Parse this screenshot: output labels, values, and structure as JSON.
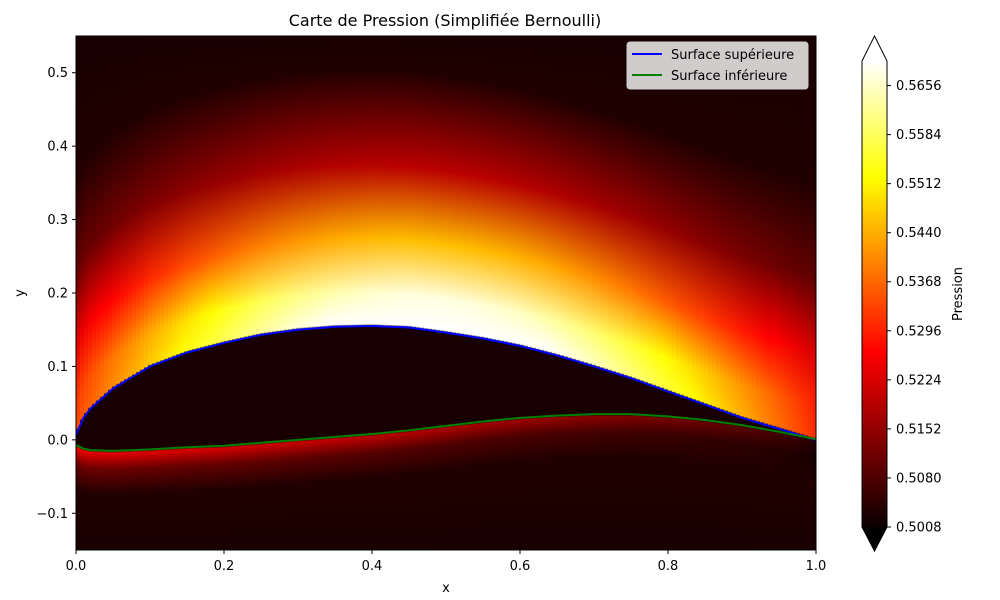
{
  "chart_data": {
    "type": "heatmap",
    "title": "Carte de Pression (Simplifiée Bernoulli)",
    "xlabel": "x",
    "ylabel": "y",
    "xlim": [
      0.0,
      1.0
    ],
    "ylim": [
      -0.15,
      0.55
    ],
    "x_ticks": [
      "0.0",
      "0.2",
      "0.4",
      "0.6",
      "0.8",
      "1.0"
    ],
    "y_ticks": [
      "−0.1",
      "0.0",
      "0.1",
      "0.2",
      "0.3",
      "0.4",
      "0.5"
    ],
    "grid": false,
    "colormap": "hot",
    "colorbar": {
      "label": "Pression",
      "range": [
        0.5008,
        0.5692
      ],
      "ticks": [
        "0.5008",
        "0.5080",
        "0.5152",
        "0.5224",
        "0.5296",
        "0.5368",
        "0.5440",
        "0.5512",
        "0.5584",
        "0.5656"
      ],
      "extend": "both"
    },
    "legend_position": "top-right",
    "series": [
      {
        "name": "Surface supérieure",
        "color": "#0000ff",
        "x": [
          0.0,
          0.01,
          0.02,
          0.05,
          0.1,
          0.15,
          0.2,
          0.25,
          0.3,
          0.35,
          0.4,
          0.45,
          0.5,
          0.55,
          0.6,
          0.65,
          0.7,
          0.75,
          0.8,
          0.85,
          0.9,
          0.95,
          1.0
        ],
        "y": [
          0.007,
          0.03,
          0.043,
          0.07,
          0.1,
          0.119,
          0.132,
          0.143,
          0.15,
          0.154,
          0.155,
          0.153,
          0.146,
          0.138,
          0.128,
          0.115,
          0.1,
          0.084,
          0.066,
          0.048,
          0.03,
          0.015,
          0.0
        ]
      },
      {
        "name": "Surface inférieure",
        "color": "#008000",
        "x": [
          0.0,
          0.01,
          0.02,
          0.05,
          0.1,
          0.15,
          0.2,
          0.25,
          0.3,
          0.35,
          0.4,
          0.45,
          0.5,
          0.55,
          0.6,
          0.65,
          0.7,
          0.75,
          0.8,
          0.85,
          0.9,
          0.95,
          1.0
        ],
        "y": [
          -0.007,
          -0.012,
          -0.014,
          -0.015,
          -0.013,
          -0.01,
          -0.008,
          -0.004,
          0.0,
          0.004,
          0.008,
          0.013,
          0.019,
          0.025,
          0.03,
          0.033,
          0.035,
          0.035,
          0.032,
          0.027,
          0.02,
          0.011,
          0.001
        ]
      }
    ]
  }
}
